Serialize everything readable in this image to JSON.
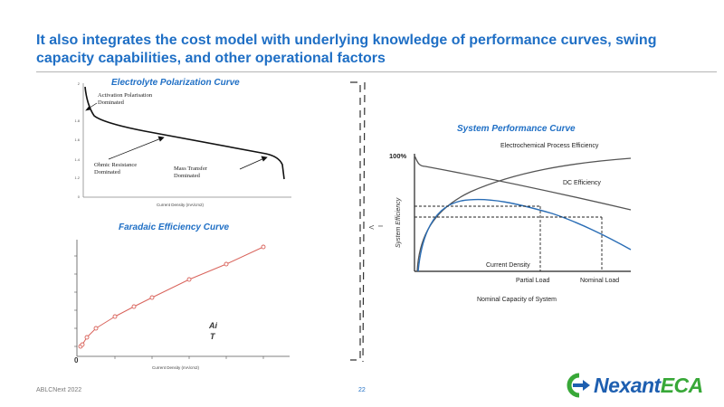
{
  "slide": {
    "title": "It also integrates the cost model with underlying knowledge of performance curves, swing capacity capabilities, and other operational factors",
    "footer_left": "ABLCNext 2022",
    "page_number": "22"
  },
  "polarization_chart": {
    "title": "Electrolyte Polarization Curve",
    "xlabel": "Current Density (mA/cm2)",
    "y_ticks": [
      "2",
      "1.8",
      "1.6",
      "1.4",
      "1.2",
      "0"
    ],
    "annotations": {
      "activation_line1": "Activation Polarisation",
      "activation_line2": "Dominated",
      "ohmic_line1": "Ohmic Resistance",
      "ohmic_line2": "Dominated",
      "mass_line1": "Mass Transfer",
      "mass_line2": "Dominated"
    }
  },
  "faradaic_chart": {
    "title": "Faradaic Efficiency Curve",
    "xlabel": "Current Density (mA/cm2)",
    "origin_label": "0",
    "fragment_1": "Ai",
    "fragment_2": "T"
  },
  "chart_data": {
    "type": "line",
    "title": "System Performance Curve",
    "ylabel": "System Efficiency",
    "xlabel": "Nominal Capacity of System",
    "y_top_tick": "100%",
    "x_ticks": [
      "Partial Load",
      "Nominal Load"
    ],
    "series": [
      {
        "name": "Electrochemical Process Efficiency"
      },
      {
        "name": "DC Efficiency"
      },
      {
        "name": "Current Density"
      }
    ]
  },
  "divider": {
    "fragment_1": "V",
    "fragment_2": "I"
  },
  "logo": {
    "part1": "Nexant",
    "part2": "ECA"
  },
  "colors": {
    "title": "#1f6fc5",
    "faradaic_curve": "#d9645c",
    "system_curve": "#2a6db5",
    "logo_blue": "#1e5fb0",
    "logo_green": "#38a838"
  }
}
